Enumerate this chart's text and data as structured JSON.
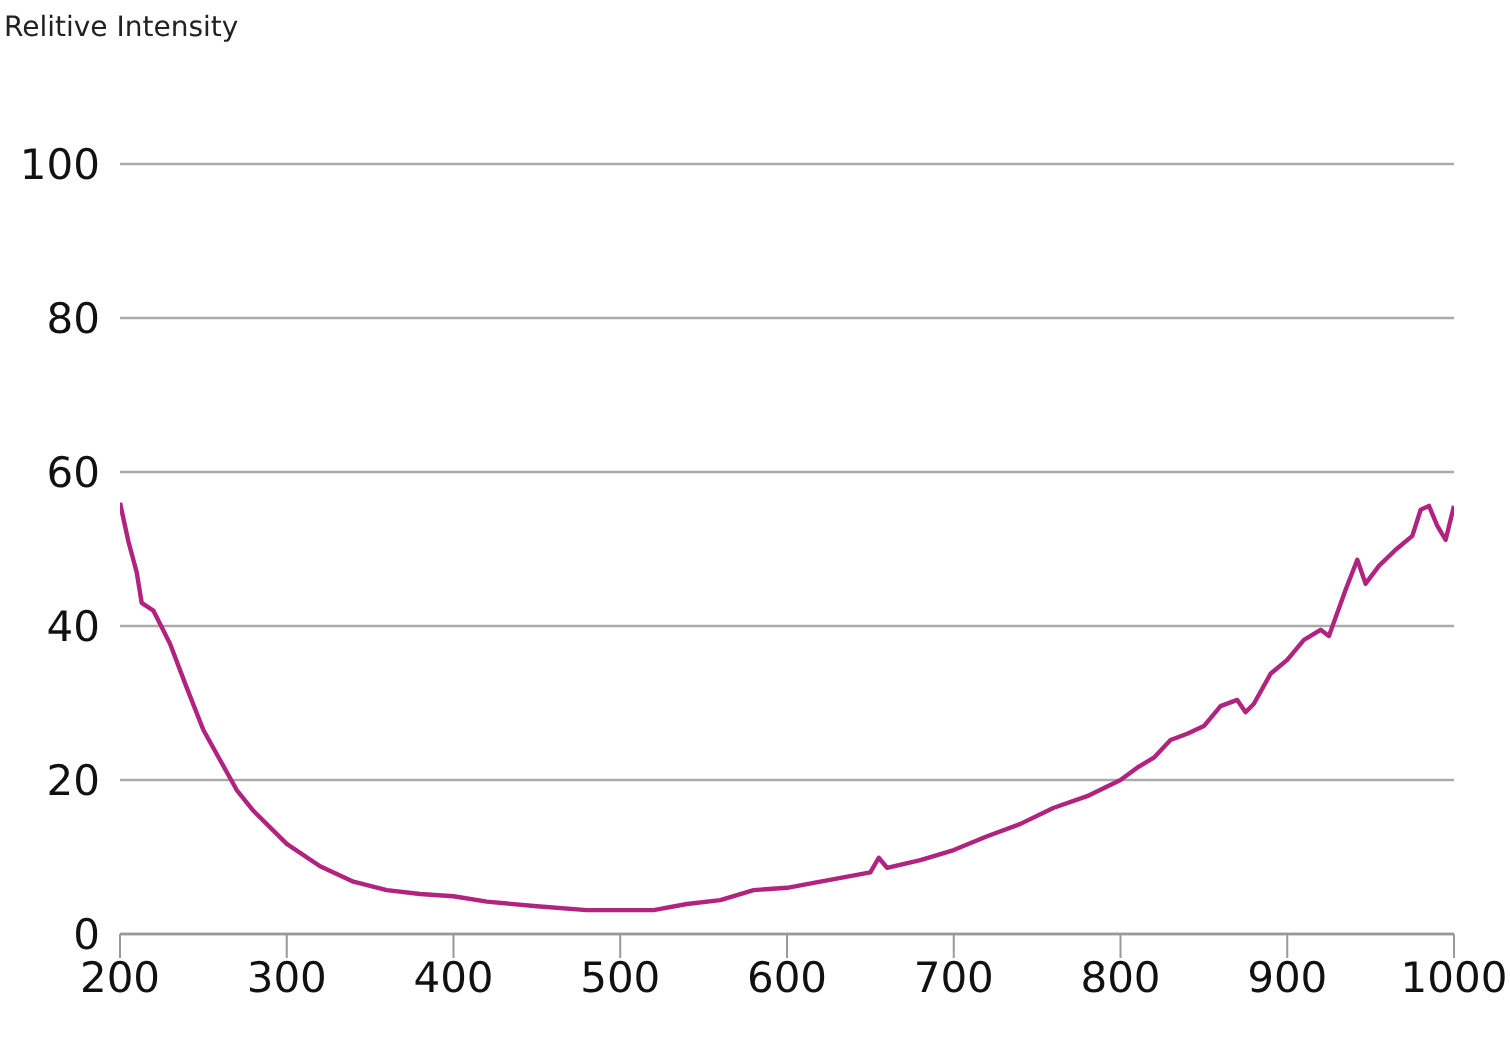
{
  "chart_data": {
    "type": "line",
    "ylabel": "Relitive Intensity",
    "x": [
      200,
      205,
      210,
      213,
      220,
      230,
      240,
      250,
      260,
      270,
      280,
      300,
      320,
      340,
      360,
      380,
      400,
      420,
      450,
      480,
      520,
      540,
      560,
      580,
      600,
      620,
      650,
      655,
      660,
      680,
      700,
      720,
      740,
      760,
      780,
      800,
      810,
      820,
      830,
      840,
      850,
      860,
      870,
      875,
      880,
      890,
      900,
      910,
      920,
      925,
      935,
      942,
      947,
      955,
      965,
      975,
      980,
      985,
      990,
      995,
      1000
    ],
    "series": [
      {
        "color": "#b0237f",
        "values": [
          56,
          51,
          47,
          43,
          42,
          37.7,
          32,
          26.5,
          22.6,
          18.7,
          16,
          11.7,
          8.8,
          6.8,
          5.7,
          5.2,
          4.9,
          4.2,
          3.6,
          3.1,
          3.1,
          3.9,
          4.4,
          5.7,
          6,
          6.8,
          8,
          9.9,
          8.6,
          9.6,
          10.9,
          12.7,
          14.3,
          16.4,
          17.9,
          20,
          21.6,
          22.9,
          25.2,
          26,
          27,
          29.6,
          30.4,
          28.8,
          29.9,
          33.8,
          35.6,
          38.2,
          39.5,
          38.7,
          44.7,
          48.6,
          45.5,
          47.8,
          49.9,
          51.7,
          55.1,
          55.6,
          53,
          51.2,
          55.6
        ]
      }
    ],
    "xlim": [
      200,
      1000
    ],
    "xticks": [
      200,
      300,
      400,
      500,
      600,
      700,
      800,
      900,
      1000
    ],
    "ylim": [
      0,
      100
    ],
    "yticks": [
      0,
      20,
      40,
      60,
      80,
      100
    ],
    "grid": "y",
    "marker": "none",
    "line_style": "solid"
  }
}
